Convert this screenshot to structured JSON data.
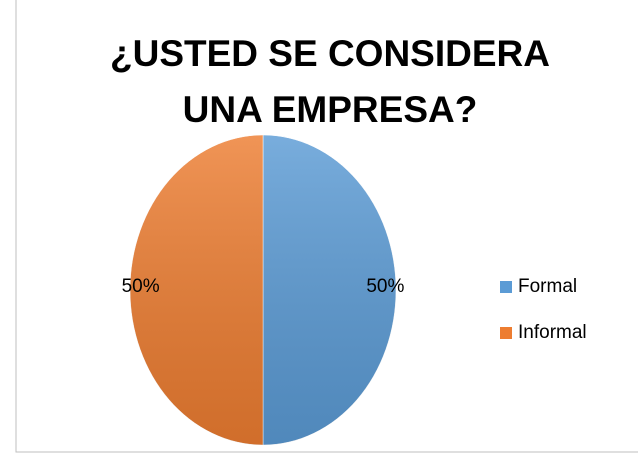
{
  "chart_data": {
    "type": "pie",
    "title": "¿USTED SE CONSIDERA UNA EMPRESA?",
    "categories": [
      "Formal",
      "Informal"
    ],
    "values": [
      50,
      50
    ],
    "value_labels": [
      "50%",
      "50%"
    ],
    "colors": [
      "#5b9bd5",
      "#ed7d31"
    ],
    "legend": "right"
  }
}
